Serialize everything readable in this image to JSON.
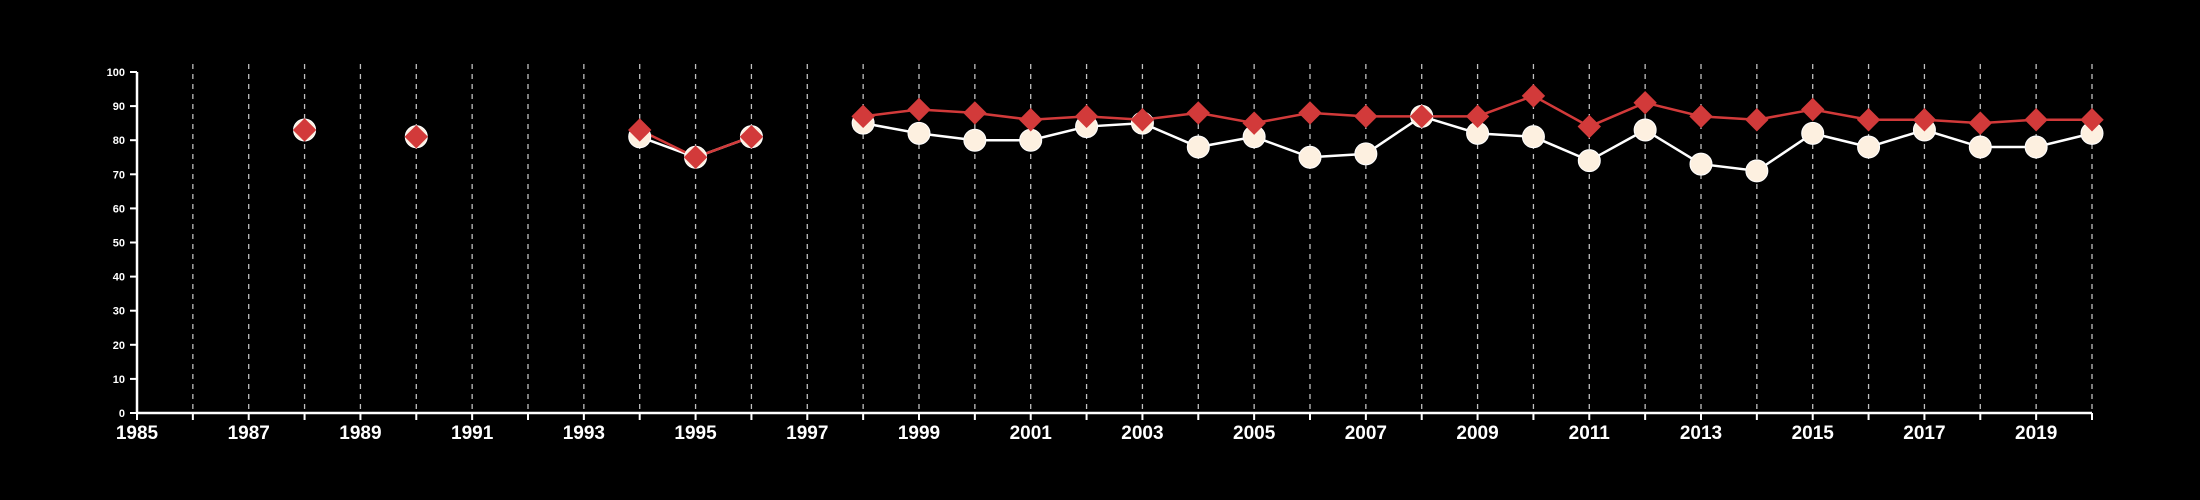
{
  "chart_data": {
    "type": "line",
    "title": "",
    "xlabel": "",
    "ylabel": "",
    "xlim": [
      1985,
      2020
    ],
    "ylim": [
      0,
      100
    ],
    "x_ticks": [
      1985,
      1987,
      1989,
      1991,
      1993,
      1995,
      1997,
      1999,
      2001,
      2003,
      2005,
      2007,
      2009,
      2011,
      2013,
      2015,
      2017,
      2019
    ],
    "y_ticks": [
      0,
      10,
      20,
      30,
      40,
      50,
      60,
      70,
      80,
      90,
      100
    ],
    "vertical_gridlines": "dashed, one per year from 1986 to 2020",
    "legend": "none",
    "background_color": "#000000",
    "axis_color": "#ffffff",
    "grid_color": "#bfbfbf",
    "series": [
      {
        "marker": "circle",
        "color": "#fdf0e0",
        "line_color": "#ffffff",
        "points": [
          [
            1988,
            83
          ],
          [
            1990,
            81
          ],
          [
            1994,
            81
          ],
          [
            1995,
            75
          ],
          [
            1996,
            81
          ],
          [
            1998,
            85
          ],
          [
            1999,
            82
          ],
          [
            2000,
            80
          ],
          [
            2001,
            80
          ],
          [
            2002,
            84
          ],
          [
            2003,
            85
          ],
          [
            2004,
            78
          ],
          [
            2005,
            81
          ],
          [
            2006,
            75
          ],
          [
            2007,
            76
          ],
          [
            2008,
            87
          ],
          [
            2009,
            82
          ],
          [
            2010,
            81
          ],
          [
            2011,
            74
          ],
          [
            2012,
            83
          ],
          [
            2013,
            73
          ],
          [
            2014,
            71
          ],
          [
            2015,
            82
          ],
          [
            2016,
            78
          ],
          [
            2017,
            83
          ],
          [
            2018,
            78
          ],
          [
            2019,
            78
          ],
          [
            2020,
            82
          ]
        ]
      },
      {
        "marker": "diamond",
        "color": "#d23a3a",
        "line_color": "#d23a3a",
        "points": [
          [
            1988,
            83
          ],
          [
            1990,
            81
          ],
          [
            1994,
            83
          ],
          [
            1995,
            75
          ],
          [
            1996,
            81
          ],
          [
            1998,
            87
          ],
          [
            1999,
            89
          ],
          [
            2000,
            88
          ],
          [
            2001,
            86
          ],
          [
            2002,
            87
          ],
          [
            2003,
            86
          ],
          [
            2004,
            88
          ],
          [
            2005,
            85
          ],
          [
            2006,
            88
          ],
          [
            2007,
            87
          ],
          [
            2008,
            87
          ],
          [
            2009,
            87
          ],
          [
            2010,
            93
          ],
          [
            2011,
            84
          ],
          [
            2012,
            91
          ],
          [
            2013,
            87
          ],
          [
            2014,
            86
          ],
          [
            2015,
            89
          ],
          [
            2016,
            86
          ],
          [
            2017,
            86
          ],
          [
            2018,
            85
          ],
          [
            2019,
            86
          ],
          [
            2020,
            86
          ]
        ]
      }
    ]
  }
}
